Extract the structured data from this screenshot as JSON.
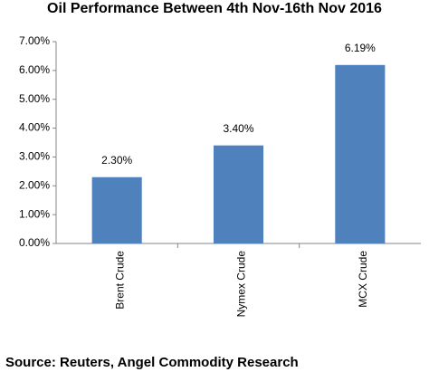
{
  "chart_data": {
    "type": "bar",
    "title": "Oil Performance Between 4th Nov-16th Nov 2016",
    "categories": [
      "Brent Crude",
      "Nymex Crude",
      "MCX Crude"
    ],
    "values": [
      2.3,
      3.4,
      6.19
    ],
    "value_labels": [
      "2.30%",
      "3.40%",
      "6.19%"
    ],
    "color": "#4f81bd",
    "ylim": [
      0,
      7
    ],
    "yticks": [
      {
        "value": 0,
        "label": "0.00%"
      },
      {
        "value": 1,
        "label": "1.00%"
      },
      {
        "value": 2,
        "label": "2.00%"
      },
      {
        "value": 3,
        "label": "3.00%"
      },
      {
        "value": 4,
        "label": "4.00%"
      },
      {
        "value": 5,
        "label": "5.00%"
      },
      {
        "value": 6,
        "label": "6.00%"
      },
      {
        "value": 7,
        "label": "7.00%"
      }
    ],
    "grid": false,
    "source": "Source: Reuters, Angel Commodity Research"
  }
}
